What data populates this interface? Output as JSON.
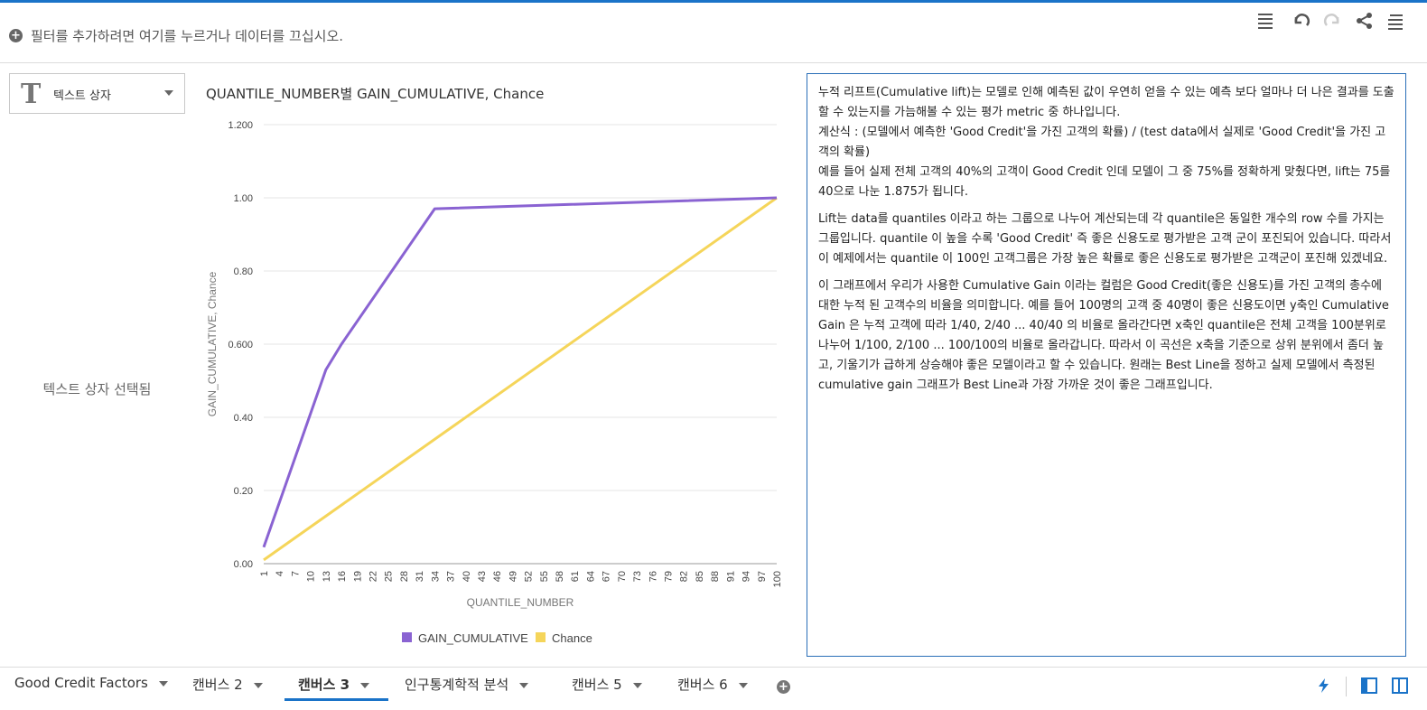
{
  "filter": {
    "placeholder": "필터를 추가하려면 여기를 누르거나 데이터를 끄십시오."
  },
  "toolbar": {
    "icons": [
      "list-icon",
      "undo-icon",
      "redo-icon",
      "share-icon",
      "menu-icon"
    ]
  },
  "textbox": {
    "label": "텍스트 상자",
    "selected_message": "텍스트 상자 선택됨"
  },
  "chart": {
    "title": "QUANTILE_NUMBER별 GAIN_CUMULATIVE, Chance"
  },
  "chart_data": {
    "type": "line",
    "title": "QUANTILE_NUMBER별 GAIN_CUMULATIVE, Chance",
    "xlabel": "QUANTILE_NUMBER",
    "ylabel": "GAIN_CUMULATIVE, Chance",
    "xlim": [
      1,
      100
    ],
    "ylim": [
      0,
      1.2
    ],
    "yticks": [
      "0.00",
      "0.20",
      "0.40",
      "0.600",
      "0.80",
      "1.00",
      "1.200"
    ],
    "xticks": [
      "1",
      "4",
      "7",
      "10",
      "13",
      "16",
      "19",
      "22",
      "25",
      "28",
      "31",
      "34",
      "37",
      "40",
      "43",
      "46",
      "49",
      "52",
      "55",
      "58",
      "61",
      "64",
      "67",
      "70",
      "73",
      "76",
      "79",
      "82",
      "85",
      "88",
      "91",
      "94",
      "97",
      "100"
    ],
    "grid": true,
    "legend": "bottom",
    "series": [
      {
        "name": "GAIN_CUMULATIVE",
        "color": "#8a63d2",
        "points": [
          [
            1,
            0.045
          ],
          [
            13,
            0.53
          ],
          [
            16,
            0.6
          ],
          [
            34,
            0.97
          ],
          [
            100,
            1.0
          ]
        ]
      },
      {
        "name": "Chance",
        "color": "#f5d55a",
        "points": [
          [
            1,
            0.01
          ],
          [
            100,
            1.0
          ]
        ]
      }
    ]
  },
  "description": {
    "paragraphs": [
      "누적 리프트(Cumulative lift)는 모델로 인해 예측된 값이 우연히 얻을 수 있는 예측 보다 얼마나 더 나은 결과를 도출할 수 있는지를 가늠해볼 수 있는 평가 metric 중 하나입니다.",
      "계산식 : (모델에서 예측한 'Good Credit'을 가진 고객의 확률) / (test data에서 실제로 'Good Credit'을 가진 고객의 확률)",
      "예를 들어 실제 전체 고객의 40%의 고객이 Good Credit 인데 모델이 그 중 75%를 정확하게 맞췄다면, lift는 75를 40으로 나눈 1.875가 됩니다.",
      "Lift는 data를 quantiles 이라고 하는 그룹으로 나누어 계산되는데 각 quantile은 동일한 개수의 row 수를 가지는 그룹입니다. quantile 이 높을 수록 'Good Credit' 즉 좋은 신용도로 평가받은 고객 군이 포진되어 있습니다. 따라서 이 예제에서는 quantile 이 100인 고객그룹은 가장 높은 확률로 좋은 신용도로 평가받은 고객군이 포진해 있겠네요.",
      "이 그래프에서 우리가 사용한 Cumulative Gain 이라는 컬럼은 Good Credit(좋은 신용도)를 가진 고객의 총수에 대한 누적 된 고객수의 비율을 의미합니다. 예를 들어 100명의 고객 중 40명이 좋은 신용도이면 y축인 Cumulative Gain 은 누적 고객에 따라 1/40, 2/40 ... 40/40 의 비율로 올라간다면 x축인 quantile은 전체 고객을 100분위로 나누어 1/100, 2/100 ... 100/100의 비율로 올라갑니다. 따라서 이 곡선은 x축을 기준으로 상위 분위에서 좀더 높고, 기울기가 급하게 상승해야 좋은 모델이라고 할 수 있습니다. 원래는 Best Line을 정하고 실제 모델에서 측정된 cumulative gain 그래프가 Best Line과 가장 가까운 것이 좋은 그래프입니다."
    ]
  },
  "tabs": [
    {
      "label": "Good Credit Factors"
    },
    {
      "label": "캔버스 2"
    },
    {
      "label": "캔버스 3",
      "active": true
    },
    {
      "label": "인구통계학적 분석"
    },
    {
      "label": "캔버스 5"
    },
    {
      "label": "캔버스 6"
    }
  ]
}
